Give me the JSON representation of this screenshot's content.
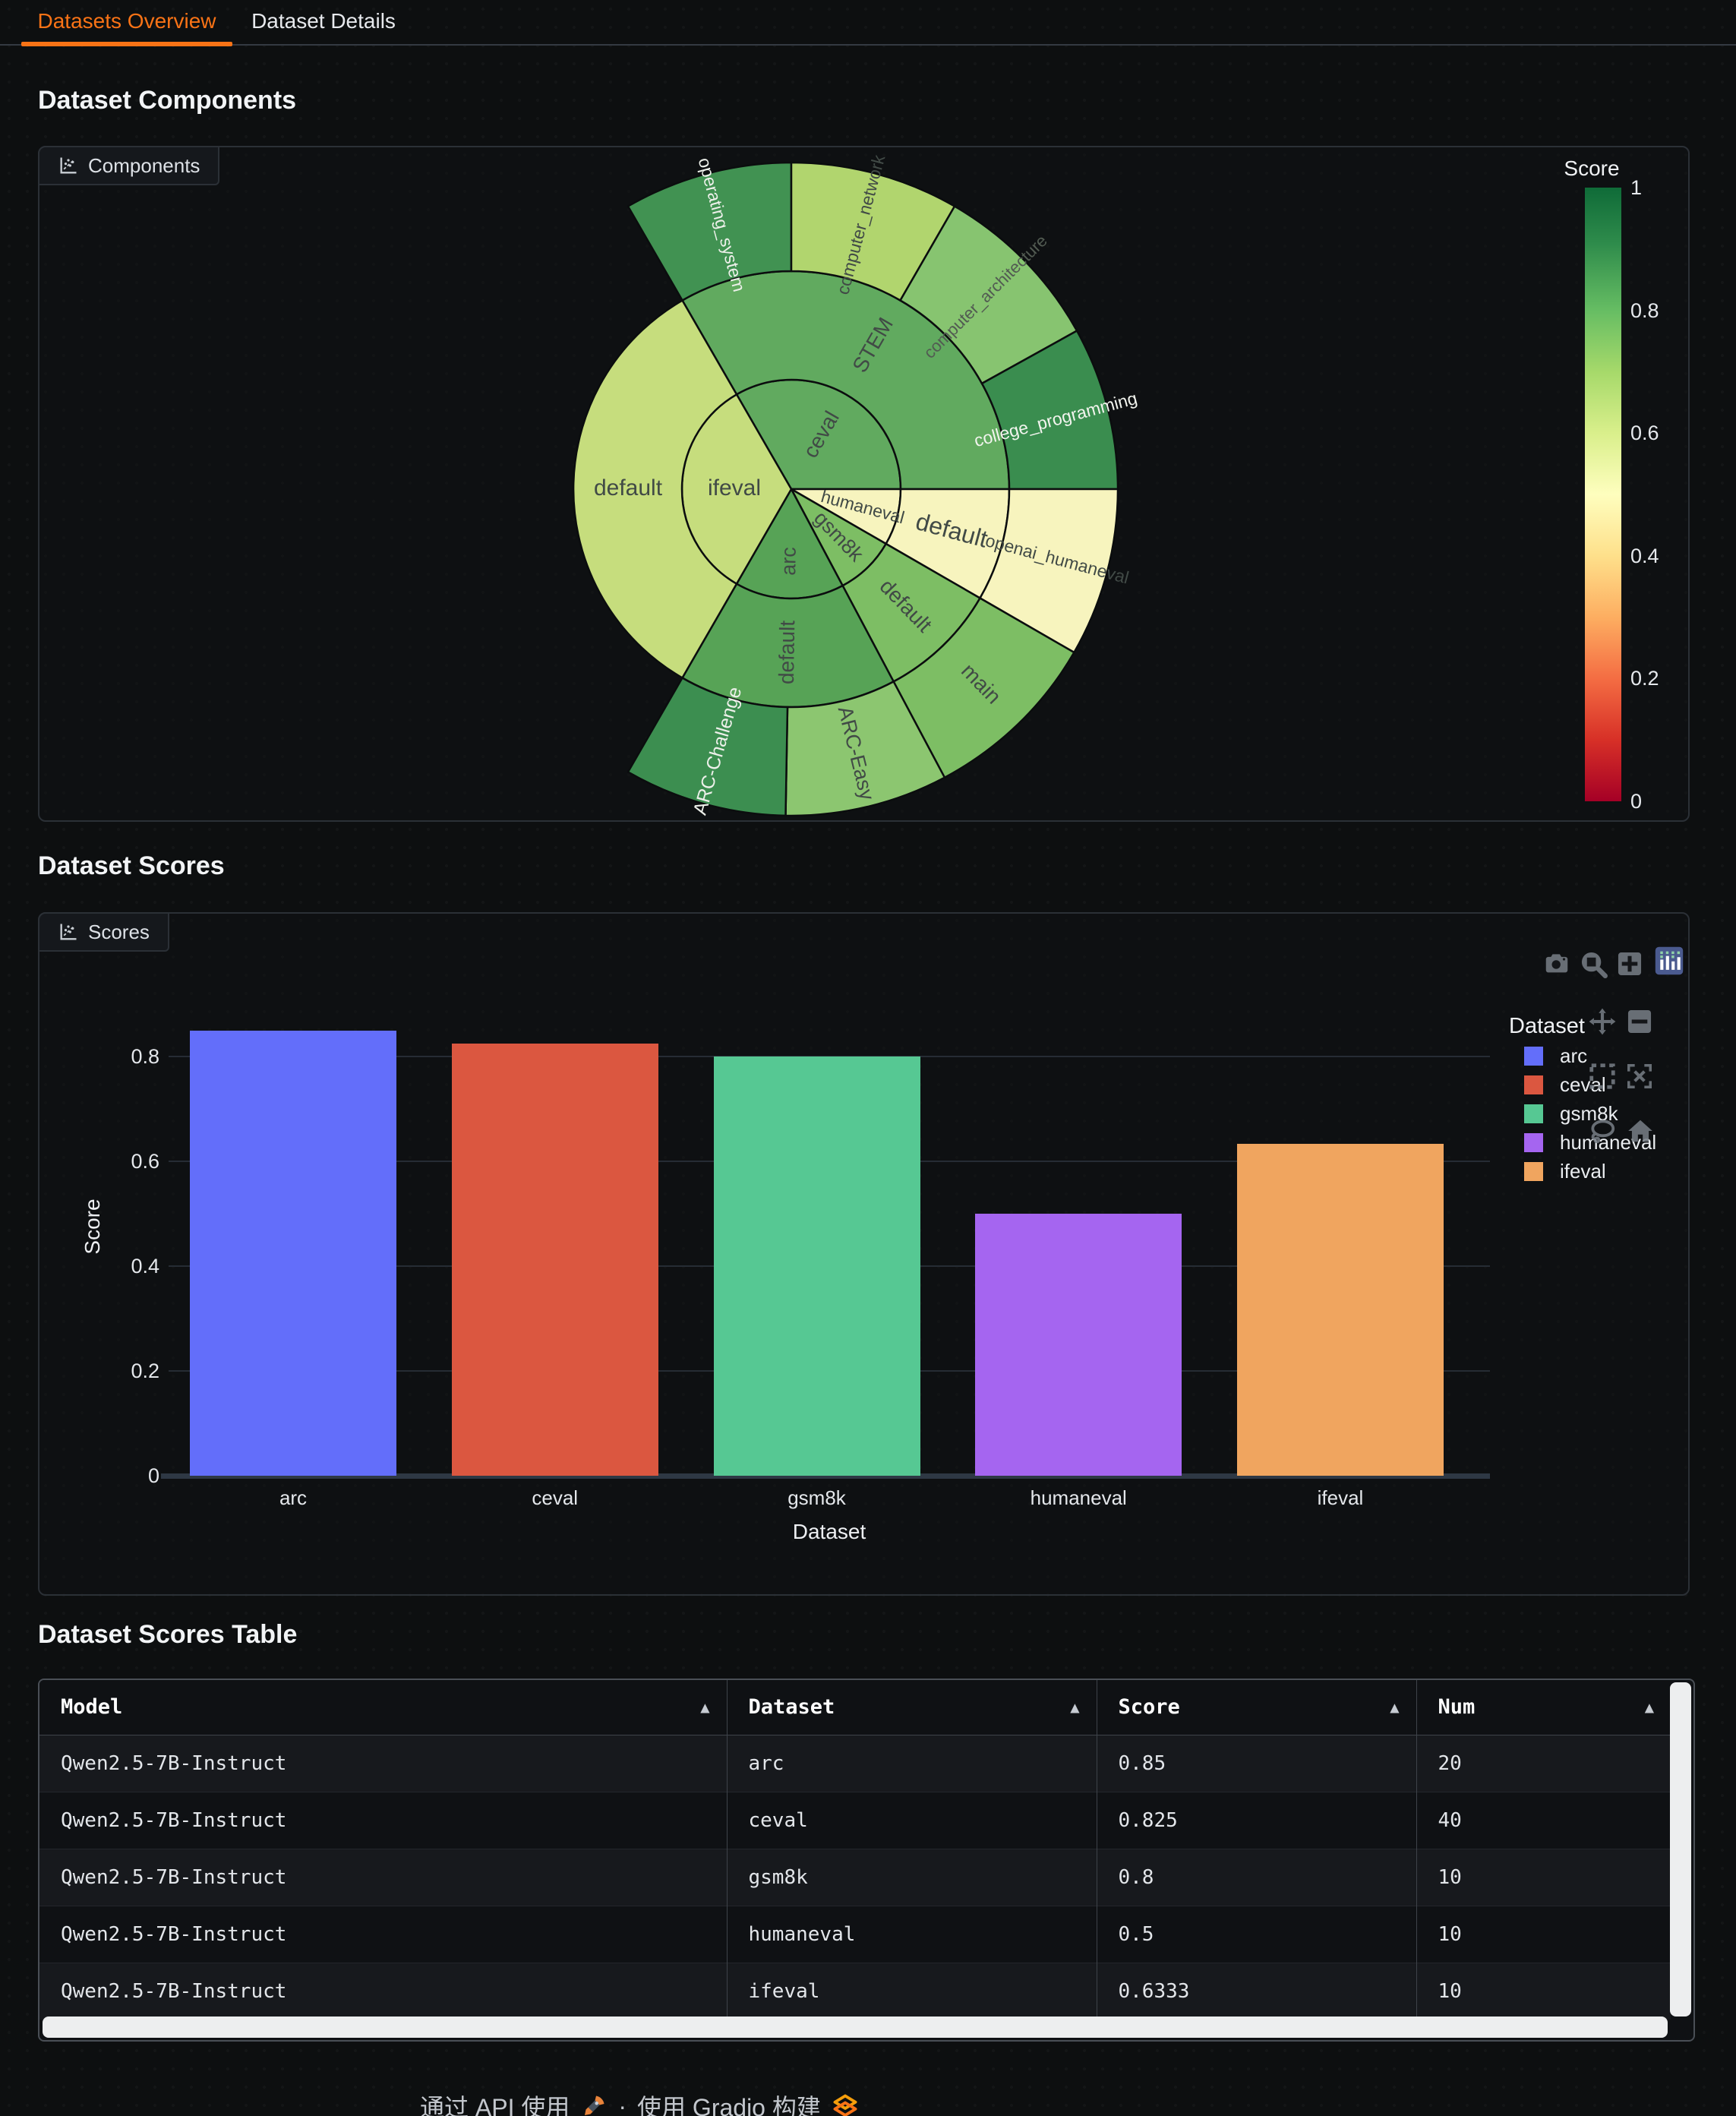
{
  "tabs": {
    "overview": "Datasets Overview",
    "details": "Dataset Details"
  },
  "headings": {
    "components": "Dataset Components",
    "scores": "Dataset Scores",
    "table": "Dataset Scores Table"
  },
  "panel_labels": {
    "components": "Components",
    "scores": "Scores"
  },
  "chart_data": [
    {
      "type": "sunburst",
      "title": "Components",
      "colorbar": {
        "title": "Score",
        "tick_labels": [
          "1",
          "0.8",
          "0.6",
          "0.4",
          "0.2",
          "0"
        ]
      },
      "nodes": [
        {
          "label": "ceval",
          "ring": 0,
          "a0": -30,
          "a1": 90,
          "color": "#61AA5F",
          "text_color": "#414A46",
          "size": 28,
          "rot": -60,
          "lr": 82
        },
        {
          "label": "humaneval",
          "ring": 0,
          "a0": 90,
          "a1": 120,
          "color": "#F7F4BE",
          "text_color": "#414A46",
          "size": 23,
          "rot": 15,
          "lr": 97
        },
        {
          "label": "gsm8k",
          "ring": 0,
          "a0": 120,
          "a1": 152,
          "color": "#7DBE64",
          "text_color": "#414A46",
          "size": 27,
          "rot": 46,
          "lr": 88
        },
        {
          "label": "arc",
          "ring": 0,
          "a0": 152,
          "a1": 210,
          "color": "#57A356",
          "text_color": "#414A46",
          "size": 27,
          "rot": -89,
          "lr": 95
        },
        {
          "label": "ifeval",
          "ring": 0,
          "a0": 210,
          "a1": 330,
          "color": "#C6DD7D",
          "text_color": "#414A46",
          "size": 30,
          "rot": 0,
          "lr": 75
        },
        {
          "label": "STEM",
          "ring": 1,
          "a0": -30,
          "a1": 90,
          "color": "#61AA5F",
          "text_color": "#414A46",
          "size": 28,
          "rot": -60,
          "lr": 218
        },
        {
          "label": "default",
          "ring": 1,
          "a0": 90,
          "a1": 120,
          "color": "#F7F4BE",
          "text_color": "#414A46",
          "size": 32,
          "rot": 15,
          "lr": 218
        },
        {
          "label": "default",
          "ring": 1,
          "a0": 120,
          "a1": 152,
          "color": "#7DBE64",
          "text_color": "#414A46",
          "size": 28,
          "rot": 46,
          "lr": 215
        },
        {
          "label": "default",
          "ring": 1,
          "a0": 152,
          "a1": 210,
          "color": "#57A356",
          "text_color": "#414A46",
          "size": 28,
          "rot": -89,
          "lr": 215
        },
        {
          "label": "default",
          "ring": 1,
          "a0": 210,
          "a1": 330,
          "color": "#C6DD7D",
          "text_color": "#414A46",
          "size": 30,
          "rot": 0,
          "lr": 215
        },
        {
          "label": "operating_system",
          "ring": 2,
          "a0": -30,
          "a1": 0,
          "color": "#419252",
          "text_color": "#EDF0EA",
          "size": 23,
          "rot": 75,
          "lr": 360
        },
        {
          "label": "computer_network",
          "ring": 2,
          "a0": 0,
          "a1": 30,
          "color": "#B1D56E",
          "text_color": "#414A46",
          "size": 23,
          "rot": -75,
          "lr": 360
        },
        {
          "label": "computer_architecture",
          "ring": 2,
          "a0": 30,
          "a1": 61,
          "color": "#87C470",
          "text_color": "#525B52",
          "size": 22,
          "rot": -45,
          "lr": 360
        },
        {
          "label": "college_programming",
          "ring": 2,
          "a0": 61,
          "a1": 90,
          "color": "#3A8D4F",
          "text_color": "#F2F4EE",
          "size": 23,
          "rot": -15,
          "lr": 360
        },
        {
          "label": "openai_humaneval",
          "ring": 2,
          "a0": 90,
          "a1": 120,
          "color": "#F7F4BE",
          "text_color": "#414A46",
          "size": 23,
          "rot": 15,
          "lr": 362
        },
        {
          "label": "main",
          "ring": 2,
          "a0": 120,
          "a1": 152,
          "color": "#7DBE64",
          "text_color": "#414A46",
          "size": 28,
          "rot": 46,
          "lr": 358
        },
        {
          "label": "ARC-Easy",
          "ring": 2,
          "a0": 152,
          "a1": 181,
          "color": "#8CC670",
          "text_color": "#414A46",
          "size": 27,
          "rot": 76,
          "lr": 358
        },
        {
          "label": "ARC-Challenge",
          "ring": 2,
          "a0": 181,
          "a1": 210,
          "color": "#3C8E50",
          "text_color": "#EDF0EA",
          "size": 25,
          "rot": -74,
          "lr": 358
        }
      ]
    },
    {
      "type": "bar",
      "categories": [
        "arc",
        "ceval",
        "gsm8k",
        "humaneval",
        "ifeval"
      ],
      "values": [
        0.85,
        0.825,
        0.8,
        0.5,
        0.6333
      ],
      "colors": [
        "#636EFA",
        "#DB5740",
        "#56C893",
        "#A565F0",
        "#F0A55F"
      ],
      "title": "Scores",
      "xlabel": "Dataset",
      "ylabel": "Score",
      "ytick_labels": [
        "0",
        "0.2",
        "0.4",
        "0.6",
        "0.8"
      ],
      "yticks": [
        0,
        0.2,
        0.4,
        0.6,
        0.8
      ],
      "ylim": [
        0,
        0.94
      ],
      "grid": true,
      "legend": {
        "title": "Dataset",
        "position": "right",
        "entries": [
          {
            "label": "arc",
            "color": "#636EFA"
          },
          {
            "label": "ceval",
            "color": "#DB5740"
          },
          {
            "label": "gsm8k",
            "color": "#56C893"
          },
          {
            "label": "humaneval",
            "color": "#A565F0"
          },
          {
            "label": "ifeval",
            "color": "#F0A55F"
          }
        ]
      }
    },
    {
      "type": "table",
      "headers": [
        "Model",
        "Dataset",
        "Score",
        "Num"
      ],
      "rows": [
        [
          "Qwen2.5-7B-Instruct",
          "arc",
          "0.85",
          "20"
        ],
        [
          "Qwen2.5-7B-Instruct",
          "ceval",
          "0.825",
          "40"
        ],
        [
          "Qwen2.5-7B-Instruct",
          "gsm8k",
          "0.8",
          "10"
        ],
        [
          "Qwen2.5-7B-Instruct",
          "humaneval",
          "0.5",
          "10"
        ],
        [
          "Qwen2.5-7B-Instruct",
          "ifeval",
          "0.6333",
          "10"
        ]
      ]
    }
  ],
  "modebar": {
    "icons": [
      "camera",
      "zoom",
      "zoom-in",
      "bar-levels",
      "pan",
      "zoom-out",
      "box-select",
      "autoscale",
      "lasso",
      "home"
    ],
    "active_color": "#4A5A8F"
  },
  "sort_arrow": "▲",
  "footer": {
    "api_text": "通过 API 使用",
    "separator": "·",
    "built_text": "使用 Gradio 构建"
  },
  "colors": {
    "accent": "#F97316",
    "page_bg": "#0D0F10",
    "panel_border": "#2B3036"
  }
}
